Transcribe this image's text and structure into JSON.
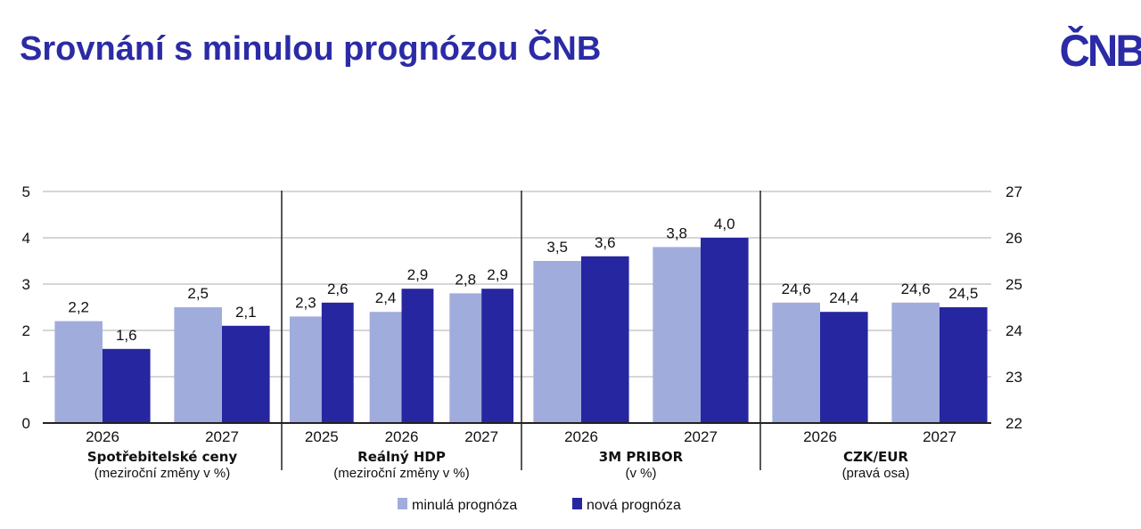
{
  "title": "Srovnání s minulou prognózou ČNB",
  "logo": "ČNB",
  "chart_data": {
    "type": "bar",
    "left_axis": {
      "ylim": [
        0,
        5
      ],
      "ticks": [
        "0",
        "1",
        "2",
        "3",
        "4",
        "5"
      ]
    },
    "right_axis": {
      "ylim": [
        22,
        27
      ],
      "ticks": [
        "22",
        "23",
        "24",
        "25",
        "26",
        "27"
      ]
    },
    "grid": true,
    "legend_placement": "bottom",
    "series": [
      {
        "name": "minulá prognóza",
        "color": "#a0acdc"
      },
      {
        "name": "nová prognóza",
        "color": "#2626a0"
      }
    ],
    "sections": [
      {
        "title": "Spotřebitelské ceny",
        "subtitle": "(meziroční změny v %)",
        "axis": "left",
        "categories": [
          "2026",
          "2027"
        ],
        "values": [
          [
            2.2,
            1.6
          ],
          [
            2.5,
            2.1
          ]
        ],
        "labels": [
          [
            "2,2",
            "1,6"
          ],
          [
            "2,5",
            "2,1"
          ]
        ]
      },
      {
        "title": "Reálný HDP",
        "subtitle": "(meziroční změny v %)",
        "axis": "left",
        "categories": [
          "2025",
          "2026",
          "2027"
        ],
        "values": [
          [
            2.3,
            2.6
          ],
          [
            2.4,
            2.9
          ],
          [
            2.8,
            2.9
          ]
        ],
        "labels": [
          [
            "2,3",
            "2,6"
          ],
          [
            "2,4",
            "2,9"
          ],
          [
            "2,8",
            "2,9"
          ]
        ]
      },
      {
        "title": "3M PRIBOR",
        "subtitle": "(v %)",
        "axis": "left",
        "categories": [
          "2026",
          "2027"
        ],
        "values": [
          [
            3.5,
            3.6
          ],
          [
            3.8,
            4.0
          ]
        ],
        "labels": [
          [
            "3,5",
            "3,6"
          ],
          [
            "3,8",
            "4,0"
          ]
        ]
      },
      {
        "title": "CZK/EUR",
        "subtitle": "(pravá osa)",
        "axis": "right",
        "categories": [
          "2026",
          "2027"
        ],
        "values": [
          [
            24.6,
            24.4
          ],
          [
            24.6,
            24.5
          ]
        ],
        "labels": [
          [
            "24,6",
            "24,4"
          ],
          [
            "24,6",
            "24,5"
          ]
        ]
      }
    ]
  }
}
